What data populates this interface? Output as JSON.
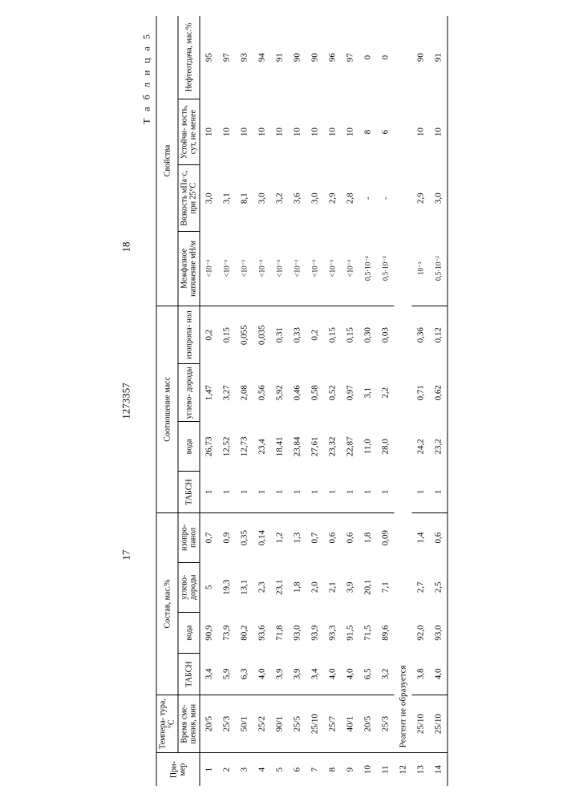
{
  "page_left": "17",
  "page_center": "1273357",
  "page_right": "18",
  "table_label": "Т а б л и ц а 5",
  "headers": {
    "primer": "При-\nмер",
    "temp": "Темпера-\nтура, °С",
    "temp_sub": "Время сме-\nшения, мин",
    "sostav": "Состав, мас.%",
    "sootn": "Соотношение масс",
    "svoistva": "Свойства",
    "tabsn": "ТАБСН",
    "voda": "вода",
    "uglev": "углево-\nдороды",
    "izoprop": "изопро-\nпанол",
    "izoprop2": "изопропа-\nнол",
    "mezh": "Межфазное\nнатяжение\nмН/м",
    "vyaz": "Вязкость\nмПа·с,\nпри 25°С",
    "ustoi": "Устойчи-\nвость,\nсут,\nне менее",
    "neft": "Нефтеотдача,\nмас.%"
  },
  "rows": [
    {
      "n": "1",
      "t": "20/5",
      "tabsn": "3,4",
      "voda": "90,9",
      "ug": "5",
      "iz": "0,7",
      "tabsn2": "1",
      "voda2": "26,73",
      "ug2": "1,47",
      "iz2": "0,2",
      "mezh": "<10⁻³",
      "vy": "3,0",
      "us": "10",
      "nf": "95"
    },
    {
      "n": "2",
      "t": "25/3",
      "tabsn": "5,9",
      "voda": "73,9",
      "ug": "19,3",
      "iz": "0,9",
      "tabsn2": "1",
      "voda2": "12,52",
      "ug2": "3,27",
      "iz2": "0,15",
      "mezh": "<10⁻³",
      "vy": "3,1",
      "us": "10",
      "nf": "97"
    },
    {
      "n": "3",
      "t": "50/1",
      "tabsn": "6,3",
      "voda": "80,2",
      "ug": "13,1",
      "iz": "0,35",
      "tabsn2": "1",
      "voda2": "12,73",
      "ug2": "2,08",
      "iz2": "0,055",
      "mezh": "<10⁻³",
      "vy": "8,1",
      "us": "10",
      "nf": "93"
    },
    {
      "n": "4",
      "t": "25/2",
      "tabsn": "4,0",
      "voda": "93,6",
      "ug": "2,3",
      "iz": "0,14",
      "tabsn2": "1",
      "voda2": "23,4",
      "ug2": "0,56",
      "iz2": "0,035",
      "mezh": "<10⁻³",
      "vy": "3,0",
      "us": "10",
      "nf": "94"
    },
    {
      "n": "5",
      "t": "90/1",
      "tabsn": "3,9",
      "voda": "71,8",
      "ug": "23,1",
      "iz": "1,2",
      "tabsn2": "1",
      "voda2": "18,41",
      "ug2": "5,92",
      "iz2": "0,31",
      "mezh": "<10⁻³",
      "vy": "3,2",
      "us": "10",
      "nf": "91"
    },
    {
      "n": "6",
      "t": "25/5",
      "tabsn": "3,9",
      "voda": "93,0",
      "ug": "1,8",
      "iz": "1,3",
      "tabsn2": "1",
      "voda2": "23,84",
      "ug2": "0,46",
      "iz2": "0,33",
      "mezh": "<10⁻³",
      "vy": "3,6",
      "us": "10",
      "nf": "90"
    },
    {
      "n": "7",
      "t": "25/10",
      "tabsn": "3,4",
      "voda": "93,9",
      "ug": "2,0",
      "iz": "0,7",
      "tabsn2": "1",
      "voda2": "27,61",
      "ug2": "0,58",
      "iz2": "0,2",
      "mezh": "<10⁻³",
      "vy": "3,0",
      "us": "10",
      "nf": "90"
    },
    {
      "n": "8",
      "t": "25/7",
      "tabsn": "4,0",
      "voda": "93,3",
      "ug": "2,1",
      "iz": "0,6",
      "tabsn2": "1",
      "voda2": "23,32",
      "ug2": "0,52",
      "iz2": "0,15",
      "mezh": "<10⁻³",
      "vy": "2,9",
      "us": "10",
      "nf": "96"
    },
    {
      "n": "9",
      "t": "40/1",
      "tabsn": "4,0",
      "voda": "91,5",
      "ug": "3,9",
      "iz": "0,6",
      "tabsn2": "1",
      "voda2": "22,87",
      "ug2": "0,97",
      "iz2": "0,15",
      "mezh": "<10⁻³",
      "vy": "2,8",
      "us": "10",
      "nf": "97"
    },
    {
      "n": "10",
      "t": "20/5",
      "tabsn": "6,5",
      "voda": "71,5",
      "ug": "20,1",
      "iz": "1,8",
      "tabsn2": "1",
      "voda2": "11,0",
      "ug2": "3,1",
      "iz2": "0,30",
      "mezh": "0,5·10⁻²",
      "vy": "-",
      "us": "8",
      "nf": "0"
    },
    {
      "n": "11",
      "t": "25/3",
      "tabsn": "3,2",
      "voda": "89,6",
      "ug": "7,1",
      "iz": "0,09",
      "tabsn2": "1",
      "voda2": "28,0",
      "ug2": "2,2",
      "iz2": "0,03",
      "mezh": "0,5·10⁻²",
      "vy": "-",
      "us": "6",
      "nf": "0"
    },
    {
      "n": "12",
      "t": "",
      "note": "Реагент не образуется"
    },
    {
      "n": "13",
      "t": "25/10",
      "tabsn": "3,8",
      "voda": "92,0",
      "ug": "2,7",
      "iz": "1,4",
      "tabsn2": "1",
      "voda2": "24,2",
      "ug2": "0,71",
      "iz2": "0,36",
      "mezh": "10⁻³",
      "vy": "2,9",
      "us": "10",
      "nf": "90"
    },
    {
      "n": "14",
      "t": "25/10",
      "tabsn": "4,0",
      "voda": "93,0",
      "ug": "2,5",
      "iz": "0,6",
      "tabsn2": "1",
      "voda2": "23,2",
      "ug2": "0,62",
      "iz2": "0,12",
      "mezh": "0,5·10⁻²",
      "vy": "3,0",
      "us": "10",
      "nf": "91"
    }
  ]
}
